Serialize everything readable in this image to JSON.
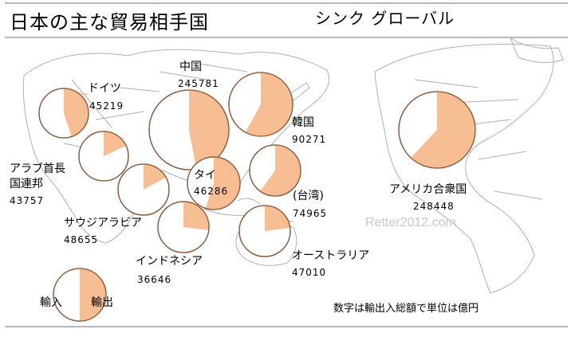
{
  "header": {
    "title": "日本の主な貿易相手国",
    "site": "シンク グローバル"
  },
  "colors": {
    "export": "#f7b98a",
    "import": "#ffffff",
    "circle_stroke": "#8c5a3c",
    "map_line": "#b0b0b0",
    "rule": "#b8b8b8"
  },
  "partners": [
    {
      "name": "中国",
      "total": "245781",
      "export_fraction": 0.47
    },
    {
      "name": "韓国",
      "total": "90271",
      "export_fraction": 0.58
    },
    {
      "name": "アメリカ合衆国",
      "total": "248448",
      "export_fraction": 0.62
    },
    {
      "name": "ドイツ",
      "total": "45219",
      "export_fraction": 0.45
    },
    {
      "name": "アラブ首長国連邦",
      "total": "43757",
      "export_fraction": 0.18
    },
    {
      "name": "タイ",
      "total": "46286",
      "export_fraction": 0.55
    },
    {
      "name": "(台湾)",
      "total": "74965",
      "export_fraction": 0.6
    },
    {
      "name": "サウジアラビア",
      "total": "48655",
      "export_fraction": 0.17
    },
    {
      "name": "インドネシア",
      "total": "36646",
      "export_fraction": 0.27
    },
    {
      "name": "オーストラリア",
      "total": "47010",
      "export_fraction": 0.23
    }
  ],
  "legend": {
    "import_label": "輸入",
    "export_label": "輸出",
    "export_fraction": 0.5
  },
  "labels": {
    "china": "中国",
    "korea": "韓国",
    "usa": "アメリカ合衆国",
    "germany": "ドイツ",
    "uae_line1": "アラブ首長",
    "uae_line2": "国連邦",
    "thailand": "タイ",
    "taiwan": "(台湾)",
    "saudi": "サウジアラビア",
    "indonesia": "インドネシア",
    "australia": "オーストラリア",
    "china_value": "245781",
    "korea_value": "90271",
    "usa_value": "248448",
    "germany_value": "45219",
    "uae_value": "43757",
    "thailand_value": "46286",
    "taiwan_value": "74965",
    "saudi_value": "48655",
    "indonesia_value": "36646",
    "australia_value": "47010"
  },
  "watermark": "Retter2012.com",
  "footnote": "数字は輸出入総額で単位は億円"
}
